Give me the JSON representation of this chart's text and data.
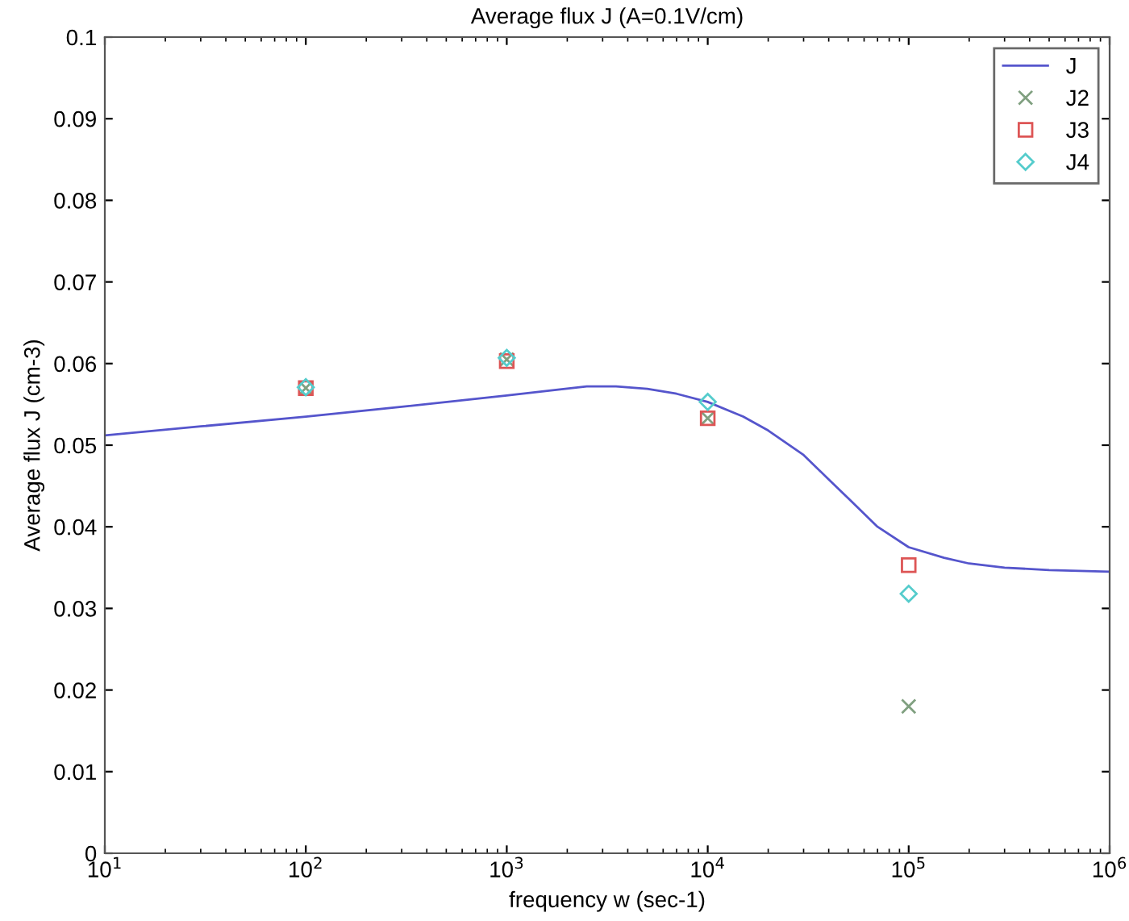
{
  "chart_data": {
    "type": "line",
    "title": "Average flux J (A=0.1V/cm)",
    "xlabel": "frequency w (sec-1)",
    "ylabel": "Average flux J (cm-3)",
    "log": "x",
    "xlim": [
      10,
      1000000
    ],
    "xticks": [
      {
        "value": 10,
        "label": "10$^{1}$"
      },
      {
        "value": 100,
        "label": "10$^{2}$"
      },
      {
        "value": 1000,
        "label": "10$^{3}$"
      },
      {
        "value": 10000,
        "label": "10$^{4}$"
      },
      {
        "value": 100000,
        "label": "10$^{5}$"
      },
      {
        "value": 1000000,
        "label": "10$^{6}$"
      }
    ],
    "ylim": [
      0,
      0.1
    ],
    "yticks": [
      0,
      0.01,
      0.02,
      0.03,
      0.04,
      0.05,
      0.06,
      0.07,
      0.08,
      0.09,
      0.1
    ],
    "grid": false,
    "legend": "top right",
    "series": [
      {
        "name": "J",
        "color": "#5555cc",
        "marker": "none",
        "line_style": "solid",
        "x": [
          10,
          30,
          100,
          300,
          1000,
          1800,
          2500,
          3500,
          5000,
          7000,
          10000,
          15000,
          20000,
          30000,
          40000,
          50000,
          70000,
          100000,
          150000,
          200000,
          300000,
          500000,
          1000000
        ],
        "values": [
          0.0512,
          0.0523,
          0.0535,
          0.0547,
          0.0561,
          0.0568,
          0.0572,
          0.0572,
          0.0569,
          0.0563,
          0.0553,
          0.0535,
          0.0518,
          0.0488,
          0.0458,
          0.0435,
          0.04,
          0.0375,
          0.0362,
          0.0355,
          0.035,
          0.0347,
          0.0345
        ]
      },
      {
        "name": "J2",
        "type": "scatter",
        "color": "#80a080",
        "marker": "cross",
        "x": [
          100,
          1000,
          10000,
          100000
        ],
        "values": [
          0.057,
          0.0605,
          0.0533,
          0.018
        ]
      },
      {
        "name": "J3",
        "type": "scatter",
        "color": "#dd5555",
        "marker": "square",
        "x": [
          100,
          1000,
          10000,
          100000
        ],
        "values": [
          0.057,
          0.0603,
          0.0533,
          0.0353
        ]
      },
      {
        "name": "J4",
        "type": "scatter",
        "color": "#55cccc",
        "marker": "diamond",
        "x": [
          100,
          1000,
          10000,
          100000
        ],
        "values": [
          0.0571,
          0.0607,
          0.0553,
          0.0318
        ]
      }
    ]
  }
}
